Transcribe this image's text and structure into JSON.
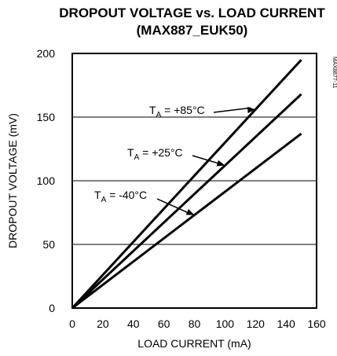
{
  "chart_data": {
    "type": "line",
    "title_line1": "DROPOUT VOLTAGE vs. LOAD CURRENT",
    "title_line2": "(MAX887_EUK50)",
    "xlabel": "LOAD CURRENT (mA)",
    "ylabel": "DROPOUT VOLTAGE (mV)",
    "xlim": [
      0,
      160
    ],
    "ylim": [
      0,
      200
    ],
    "xticks": [
      "0",
      "20",
      "40",
      "60",
      "80",
      "100",
      "120",
      "140",
      "160"
    ],
    "yticks": [
      "0",
      "50",
      "100",
      "150",
      "200"
    ],
    "grid": true,
    "code": "MAX8877-11",
    "series": [
      {
        "name": "T_A = +85°C",
        "label_main": "T",
        "label_sub": "A",
        "label_rest": " = +85°C",
        "x": [
          0,
          150
        ],
        "y": [
          0,
          195
        ]
      },
      {
        "name": "T_A = +25°C",
        "label_main": "T",
        "label_sub": "A",
        "label_rest": " = +25°C",
        "x": [
          0,
          150
        ],
        "y": [
          0,
          168
        ]
      },
      {
        "name": "T_A = -40°C",
        "label_main": "T",
        "label_sub": "A",
        "label_rest": " = -40°C",
        "x": [
          0,
          150
        ],
        "y": [
          0,
          137
        ]
      }
    ]
  }
}
